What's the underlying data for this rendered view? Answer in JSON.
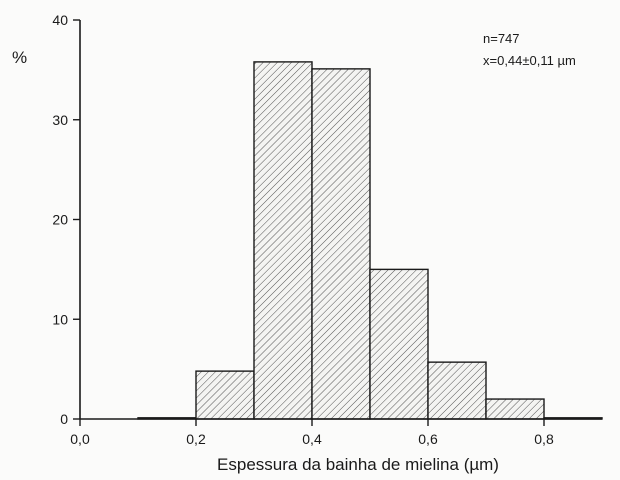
{
  "chart_data": {
    "type": "bar",
    "title": "",
    "ylabel": "%",
    "xlabel": "Espessura da bainha de mielina (µm)",
    "xlim": [
      0.0,
      0.9
    ],
    "ylim": [
      0,
      40
    ],
    "x_ticks": [
      0.0,
      0.2,
      0.4,
      0.6,
      0.8
    ],
    "x_tick_labels": [
      "0,0",
      "0,2",
      "0,4",
      "0,6",
      "0,8"
    ],
    "y_ticks": [
      0,
      10,
      20,
      30,
      40
    ],
    "y_tick_labels": [
      "0",
      "10",
      "20",
      "30",
      "40"
    ],
    "bins": [
      {
        "from": 0.1,
        "to": 0.2,
        "value": 0.1
      },
      {
        "from": 0.2,
        "to": 0.3,
        "value": 4.8
      },
      {
        "from": 0.3,
        "to": 0.4,
        "value": 35.8
      },
      {
        "from": 0.4,
        "to": 0.5,
        "value": 35.1
      },
      {
        "from": 0.5,
        "to": 0.6,
        "value": 15.0
      },
      {
        "from": 0.6,
        "to": 0.7,
        "value": 5.7
      },
      {
        "from": 0.7,
        "to": 0.8,
        "value": 2.0
      },
      {
        "from": 0.8,
        "to": 0.9,
        "value": 0.1
      }
    ],
    "annotations": [
      "n=747",
      "x=0,44±0,11 µm"
    ],
    "grid": false,
    "fill": "hatched"
  }
}
